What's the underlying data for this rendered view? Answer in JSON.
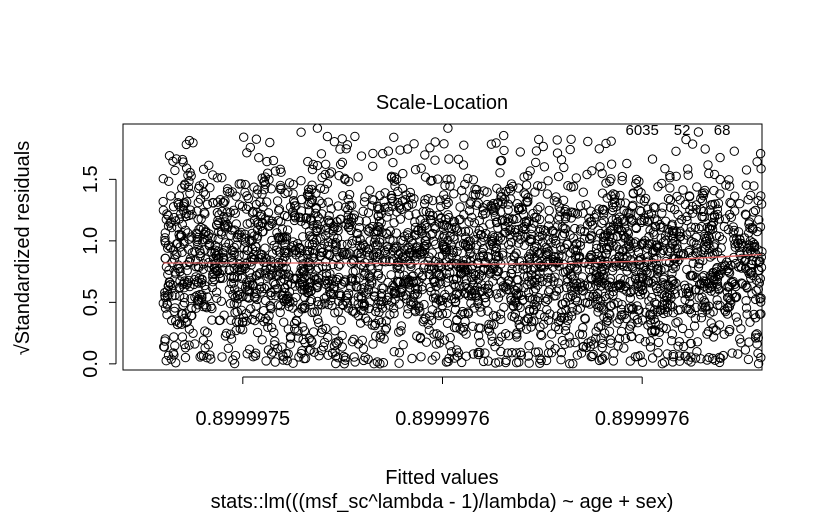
{
  "chart_data": {
    "type": "scatter",
    "title": "Scale-Location",
    "xlabel": "Fitted values",
    "ylabel": "√Standardized residuals",
    "subtitle": "stats::lm(((msf_sc^lambda - 1)/lambda) ~ age + sex)",
    "xlim": [
      0.89999747,
      0.89999763
    ],
    "ylim": [
      -0.05,
      1.95
    ],
    "x_ticks": [
      {
        "value": 0.8999975,
        "label": "0.8999975"
      },
      {
        "value": 0.89999755,
        "label": "0.8999976"
      },
      {
        "value": 0.8999976,
        "label": "0.8999976"
      }
    ],
    "y_ticks": [
      {
        "value": 0.0,
        "label": "0.0"
      },
      {
        "value": 0.5,
        "label": "0.5"
      },
      {
        "value": 1.0,
        "label": "1.0"
      },
      {
        "value": 1.5,
        "label": "1.5"
      }
    ],
    "data_range": {
      "x": [
        0.89999748,
        0.89999763
      ],
      "y": [
        0.0,
        1.93
      ]
    },
    "smoother": {
      "x": [
        0.89999748,
        0.8999975,
        0.89999752,
        0.89999754,
        0.89999756,
        0.89999758,
        0.8999976,
        0.89999762,
        0.89999763
      ],
      "y": [
        0.82,
        0.82,
        0.82,
        0.815,
        0.81,
        0.815,
        0.835,
        0.87,
        0.89
      ],
      "color": "#e06060"
    },
    "annotated_points": [
      {
        "label": "6035",
        "x": 0.8999976,
        "y": 1.9
      },
      {
        "label": "52",
        "x": 0.89999761,
        "y": 1.9
      },
      {
        "label": "68",
        "x": 0.89999762,
        "y": 1.9
      }
    ],
    "point_color": "#000000",
    "grid": false
  }
}
